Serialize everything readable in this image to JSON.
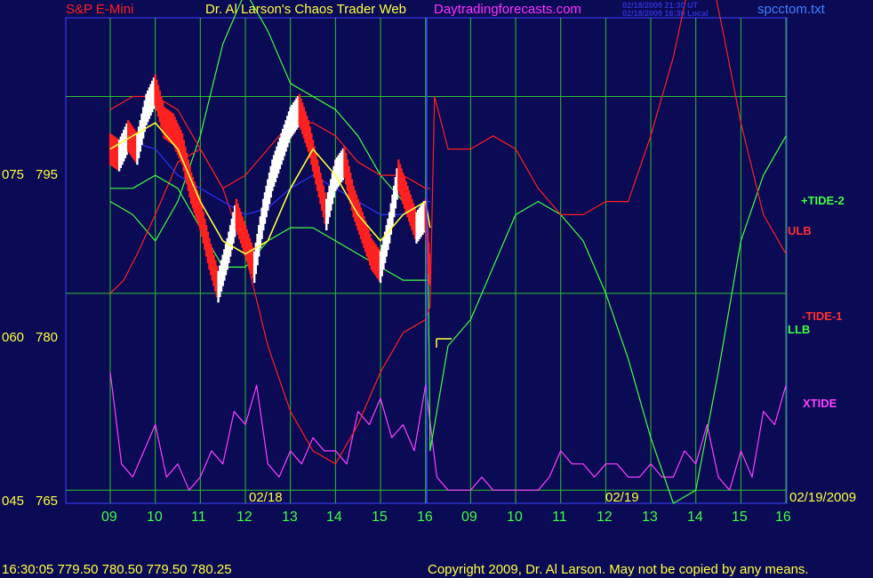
{
  "header": {
    "instrument": "S&P E-Mini",
    "title": "Dr. Al Larson's Chaos Trader Web",
    "site": "Daytradingforecasts.com",
    "timestamp_ut": "02/18/2009 21:30 UT",
    "timestamp_local": "02/18/2009 16:30 Local",
    "file": "spcctom.txt"
  },
  "footer": {
    "quote": "16:30:05  779.50 780.50 779.50 780.25",
    "copyright": "Copyright 2009, Dr. Al Larson. May not be copied by any means."
  },
  "right_labels": [
    {
      "text": "+TIDE-2",
      "color": "#40ff40"
    },
    {
      "text": "ULB",
      "color": "#ff3030"
    },
    {
      "text": "-TIDE-1",
      "color": "#ff3030"
    },
    {
      "text": "LLB",
      "color": "#40ff40"
    },
    {
      "text": "XTIDE",
      "color": "#ff40ff"
    }
  ],
  "chart_data": {
    "type": "line",
    "y_ticks": [
      {
        "left": "075",
        "price": "795",
        "value": 795
      },
      {
        "left": "060",
        "price": "780",
        "value": 780
      },
      {
        "left": "045",
        "price": "765",
        "value": 765
      }
    ],
    "ylim": [
      764,
      801
    ],
    "x_ticks": [
      "09",
      "10",
      "11",
      "12",
      "13",
      "14",
      "15",
      "16",
      "09",
      "10",
      "11",
      "12",
      "13",
      "14",
      "15",
      "16"
    ],
    "date_labels": [
      "02/18",
      "02/19",
      "02/19/2009"
    ],
    "colors": {
      "background": "#0a0a55",
      "grid": "#30c030",
      "price_up": "#ffffff",
      "price_down": "#ff2020",
      "ma": "#ffff40",
      "mid": "#3030ff",
      "ulb": "#ff2020",
      "llb": "#40ff40",
      "xtide": "#ff40ff",
      "tide1": "#ff2020",
      "tide2": "#40ff40"
    },
    "series": [
      {
        "key": "price",
        "x": [
          0,
          0.2,
          0.4,
          0.6,
          0.8,
          1,
          1.2,
          1.4,
          1.6,
          1.8,
          2,
          2.2,
          2.4,
          2.6,
          2.8,
          3,
          3.2,
          3.4,
          3.6,
          3.8,
          4,
          4.2,
          4.4,
          4.6,
          4.8,
          5,
          5.2,
          5.4,
          5.6,
          5.8,
          6,
          6.2,
          6.4,
          6.6,
          6.8,
          7,
          7.1
        ],
        "values": [
          791,
          790.5,
          792,
          791,
          794,
          795.5,
          793,
          792.5,
          791,
          788,
          786,
          783,
          780.5,
          783,
          786,
          784,
          782,
          786,
          789,
          791,
          793,
          794,
          792,
          789,
          786,
          789,
          790,
          787,
          785,
          783,
          782,
          785,
          789,
          787,
          785,
          786,
          781
        ]
      },
      {
        "key": "ma",
        "x": [
          0,
          0.5,
          1,
          1.5,
          2,
          2.5,
          3,
          3.5,
          4,
          4.5,
          5,
          5.5,
          6,
          6.5,
          7,
          7.1
        ],
        "values": [
          791,
          792,
          793,
          791,
          787,
          784,
          783,
          784,
          788,
          791,
          789,
          786,
          784,
          786,
          787,
          785
        ]
      },
      {
        "key": "mid",
        "x": [
          0,
          0.5,
          1,
          1.5,
          2,
          2.5,
          3,
          3.5,
          4,
          4.5,
          5,
          5.5,
          6,
          6.5,
          7,
          7.1
        ],
        "values": [
          791,
          791.5,
          791,
          789,
          788,
          787,
          786,
          786.5,
          788,
          789,
          788,
          787,
          786,
          786,
          787,
          787
        ]
      },
      {
        "key": "ulb",
        "x": [
          0,
          0.5,
          1,
          1.5,
          2,
          2.5,
          3,
          3.5,
          4,
          4.5,
          5,
          5.5,
          6,
          6.5,
          7,
          7.1
        ],
        "values": [
          794,
          795,
          795,
          794,
          791,
          788,
          789,
          791,
          793,
          793,
          792,
          790,
          789,
          789,
          788,
          788
        ]
      },
      {
        "key": "llb",
        "x": [
          0,
          0.5,
          1,
          1.5,
          2,
          2.5,
          3,
          3.5,
          4,
          4.5,
          5,
          5.5,
          6,
          6.5,
          7,
          7.1
        ],
        "values": [
          788,
          788,
          789,
          788,
          785,
          782,
          782,
          784,
          785,
          785,
          784,
          783,
          782,
          781,
          781,
          781
        ]
      },
      {
        "key": "tide1",
        "x": [
          0,
          0.3,
          0.6,
          1,
          1.5,
          2,
          2.5,
          3,
          3.5,
          4,
          4.5,
          5,
          5.5,
          6,
          6.5,
          7,
          7.1,
          7.2,
          7.5,
          8,
          8.5,
          9,
          9.5,
          10,
          10.5,
          11,
          11.5,
          12,
          12.5,
          13,
          13.3,
          13.6,
          14,
          14.5,
          15,
          15
        ],
        "values": [
          780,
          781,
          783,
          786,
          790,
          791,
          788,
          783,
          776,
          771,
          768,
          767,
          770,
          774,
          777,
          778,
          779,
          795,
          791,
          791,
          792,
          791,
          788,
          786,
          786,
          787,
          787,
          792,
          798,
          806,
          805,
          800,
          793,
          786,
          783,
          783
        ]
      },
      {
        "key": "tide2",
        "x": [
          0,
          0.5,
          1,
          1.5,
          2,
          2.5,
          3,
          3.5,
          4,
          4.5,
          5,
          5.5,
          6,
          6.5,
          7,
          7.05,
          7.1,
          7.5,
          8,
          8.5,
          9,
          9.5,
          10,
          10.5,
          11,
          11.5,
          12,
          12.5,
          13,
          13.5,
          14,
          14.5,
          15
        ],
        "values": [
          787,
          786,
          784,
          787,
          792,
          799,
          803,
          800,
          796,
          795,
          794,
          792,
          789,
          787,
          785,
          785,
          768,
          776,
          778,
          782,
          786,
          787,
          786,
          784,
          780,
          775,
          769,
          764,
          765,
          774,
          784,
          789,
          792
        ]
      },
      {
        "key": "xtide",
        "x": [
          0,
          0.25,
          0.5,
          0.75,
          1,
          1.25,
          1.5,
          1.75,
          2,
          2.25,
          2.5,
          2.75,
          3,
          3.25,
          3.5,
          3.75,
          4,
          4.25,
          4.5,
          4.75,
          5,
          5.25,
          5.5,
          5.75,
          6,
          6.25,
          6.5,
          6.75,
          7,
          7.25,
          7.5,
          7.75,
          8,
          8.25,
          8.5,
          8.75,
          9,
          9.25,
          9.5,
          9.75,
          10,
          10.25,
          10.5,
          10.75,
          11,
          11.25,
          11.5,
          11.75,
          12,
          12.25,
          12.5,
          12.75,
          13,
          13.25,
          13.5,
          13.75,
          14,
          14.25,
          14.5,
          14.75,
          15
        ],
        "values": [
          774,
          767,
          766,
          768,
          770,
          766,
          767,
          765,
          766,
          768,
          767,
          771,
          770,
          773,
          767,
          766,
          768,
          767,
          769,
          768,
          768,
          767,
          771,
          770,
          772,
          769,
          770,
          768,
          773,
          766,
          765,
          765,
          765,
          766,
          765,
          765,
          765,
          765,
          765,
          766,
          768,
          767,
          767,
          766,
          767,
          767,
          766,
          766,
          767,
          766,
          766,
          768,
          767,
          770,
          766,
          765,
          768,
          766,
          771,
          770,
          773
        ]
      }
    ]
  }
}
